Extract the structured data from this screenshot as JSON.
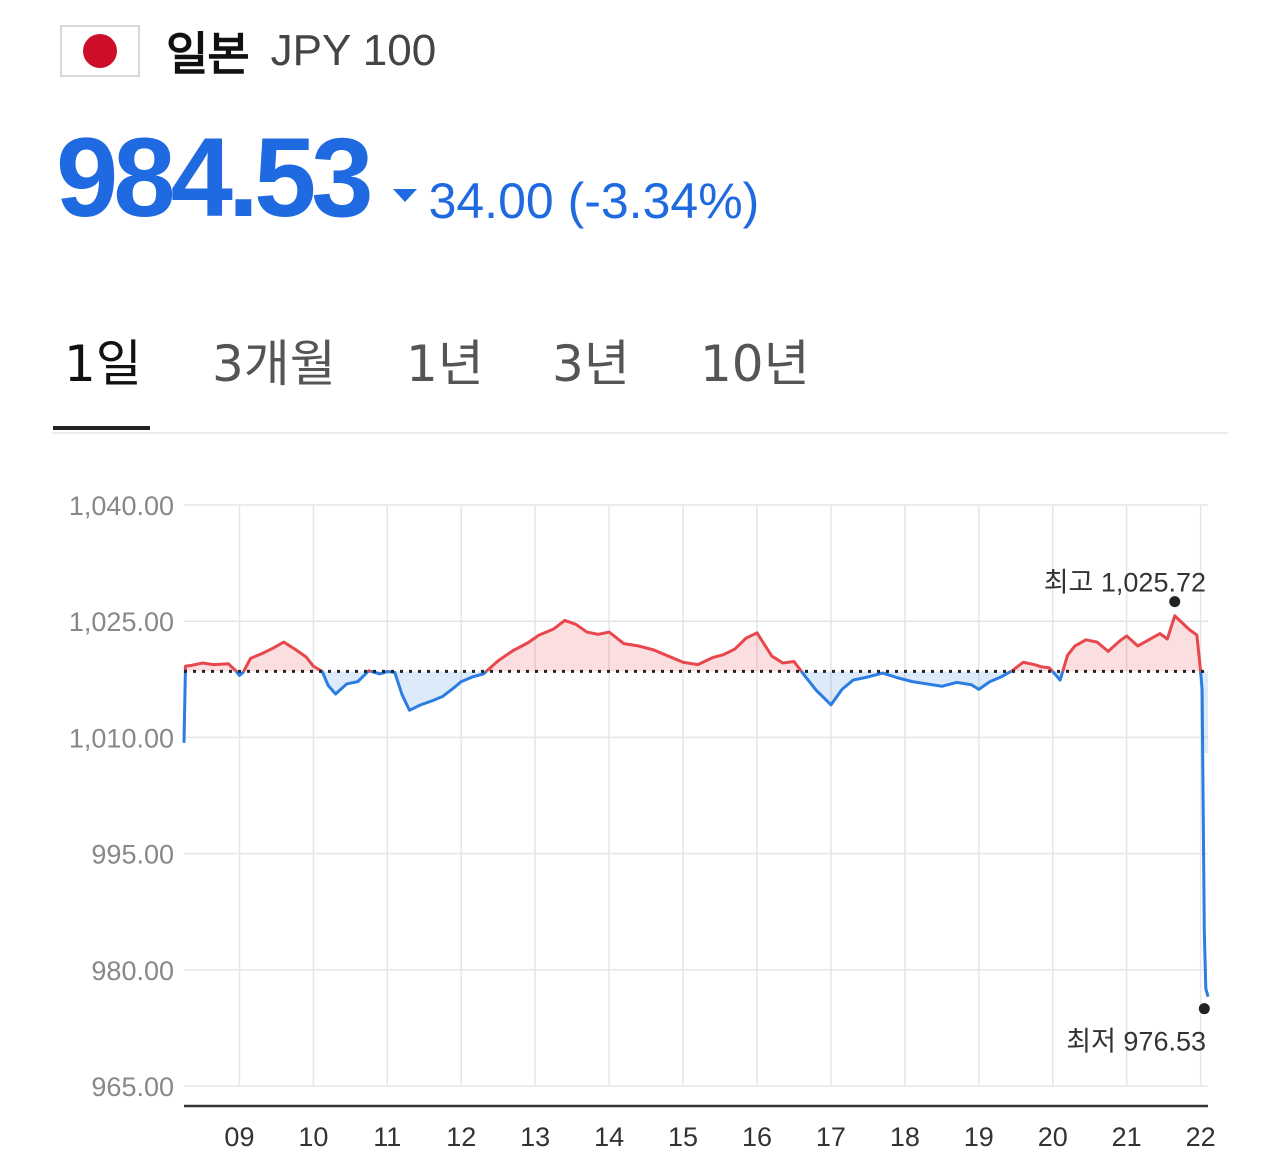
{
  "header": {
    "country": "일본",
    "currency_code": "JPY 100",
    "flag_icon": "japan-flag-icon"
  },
  "quote": {
    "price": "984.53",
    "change": "34.00 (-3.34%)",
    "direction": "down",
    "color": "#1f6ae0"
  },
  "tabs": [
    {
      "label": "1일",
      "active": true
    },
    {
      "label": "3개월",
      "active": false
    },
    {
      "label": "1년",
      "active": false
    },
    {
      "label": "3년",
      "active": false
    },
    {
      "label": "10년",
      "active": false
    }
  ],
  "chart_data": {
    "type": "line",
    "x_tick_labels": [
      "09",
      "10",
      "11",
      "12",
      "13",
      "14",
      "15",
      "16",
      "17",
      "18",
      "19",
      "20",
      "21",
      "22"
    ],
    "y_tick_labels": [
      "1,040.00",
      "1,025.00",
      "1,010.00",
      "995.00",
      "980.00",
      "965.00"
    ],
    "y_ticks": [
      1040,
      1025,
      1010,
      995,
      980,
      965
    ],
    "ylim": [
      965,
      1040
    ],
    "xlim": [
      8.25,
      22.1
    ],
    "baseline": 1018.53,
    "grid": true,
    "up_color": "#e8474c",
    "down_color": "#2a7de1",
    "high": {
      "label": "최고 1,025.72",
      "x": 21.65,
      "y": 1025.72
    },
    "low": {
      "label": "최저 976.53",
      "x": 22.05,
      "y": 976.53
    },
    "series": [
      {
        "x": [
          8.25,
          8.27,
          8.35,
          8.5,
          8.65,
          8.85,
          8.95,
          9.0,
          9.05,
          9.15,
          9.3,
          9.45,
          9.6,
          9.75,
          9.9,
          10.0,
          10.12,
          10.2,
          10.3,
          10.45,
          10.6,
          10.75,
          10.9,
          11.0,
          11.1,
          11.2,
          11.3,
          11.45,
          11.6,
          11.75,
          11.9,
          12.0,
          12.15,
          12.3,
          12.5,
          12.7,
          12.9,
          13.05,
          13.25,
          13.4,
          13.55,
          13.7,
          13.85,
          14.0,
          14.2,
          14.4,
          14.6,
          14.8,
          15.0,
          15.2,
          15.4,
          15.55,
          15.7,
          15.85,
          16.0,
          16.2,
          16.35,
          16.5,
          16.65,
          16.8,
          17.0,
          17.15,
          17.3,
          17.5,
          17.7,
          17.9,
          18.1,
          18.3,
          18.5,
          18.7,
          18.9,
          19.0,
          19.15,
          19.3,
          19.45,
          19.6,
          19.75,
          19.85,
          19.95,
          20.0,
          20.1,
          20.2,
          20.3,
          20.45,
          20.6,
          20.75,
          20.9,
          21.0,
          21.15,
          21.3,
          21.45,
          21.55,
          21.65,
          21.75,
          21.85,
          21.95,
          22.0,
          22.02,
          22.05,
          22.07,
          22.1
        ],
        "y": [
          1009.3,
          1019.2,
          1019.3,
          1019.6,
          1019.4,
          1019.5,
          1018.6,
          1018.0,
          1018.4,
          1020.2,
          1020.8,
          1021.5,
          1022.3,
          1021.4,
          1020.4,
          1019.2,
          1018.5,
          1016.7,
          1015.6,
          1016.9,
          1017.2,
          1018.6,
          1018.2,
          1018.5,
          1018.4,
          1015.5,
          1013.5,
          1014.2,
          1014.7,
          1015.3,
          1016.4,
          1017.2,
          1017.8,
          1018.2,
          1019.9,
          1021.2,
          1022.2,
          1023.2,
          1024.0,
          1025.1,
          1024.6,
          1023.6,
          1023.3,
          1023.6,
          1022.1,
          1021.8,
          1021.3,
          1020.5,
          1019.7,
          1019.4,
          1020.3,
          1020.7,
          1021.4,
          1022.8,
          1023.5,
          1020.5,
          1019.6,
          1019.8,
          1017.9,
          1016.1,
          1014.2,
          1016.2,
          1017.4,
          1017.8,
          1018.3,
          1017.7,
          1017.2,
          1016.9,
          1016.6,
          1017.1,
          1016.8,
          1016.2,
          1017.2,
          1017.8,
          1018.6,
          1019.7,
          1019.4,
          1019.1,
          1019.0,
          1018.5,
          1017.4,
          1020.6,
          1021.8,
          1022.6,
          1022.3,
          1021.1,
          1022.4,
          1023.1,
          1021.8,
          1022.6,
          1023.4,
          1022.7,
          1025.7,
          1024.8,
          1023.9,
          1023.2,
          1018.5,
          1016.2,
          985.0,
          977.6,
          976.53
        ]
      }
    ]
  }
}
